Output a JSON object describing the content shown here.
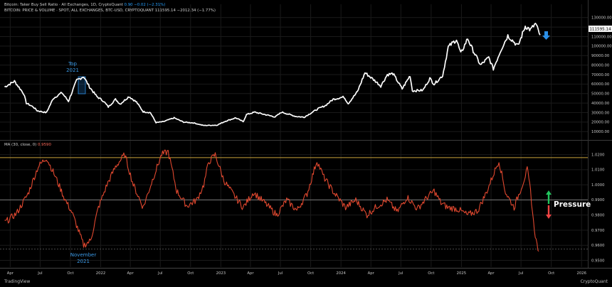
{
  "header": {
    "line1_title": "Bitcoin: Taker Buy Sell Ratio · All Exchanges, 1D, CryptoQuant",
    "line1_values": "0.90  −0.02 (−2.31%)",
    "line2_title": "BITCOIN: PRICE & VOLUME · SPOT, ALL EXCHANGES, BTC-USD, CRYPTOQUANT",
    "line2_values": "111595.14  −2012.34 (−1.77%)",
    "ma_label": "MA (30, close, 0)",
    "ma_value": "0.9590"
  },
  "watermarks": {
    "left": "TradingView",
    "right": "CryptoQuant"
  },
  "colors": {
    "price_line": "#ffffff",
    "ma_line": "#e0482f",
    "band_line": "#c8a23a",
    "accent_blue": "#2b8fe8",
    "arrow_green": "#22c55e",
    "arrow_red": "#ef4444",
    "grid": "#1a1a1a"
  },
  "chart_data": [
    {
      "type": "line",
      "panel": "price",
      "series_name": "BITCOIN: PRICE & VOLUME",
      "x_ticks": [
        "Apr",
        "Jul",
        "Oct",
        "2022",
        "Apr",
        "Jul",
        "Oct",
        "2023",
        "Apr",
        "Jul",
        "Oct",
        "2024",
        "Apr",
        "Jul",
        "Oct",
        "2025",
        "Apr",
        "Jul",
        "Oct",
        "2026"
      ],
      "y_ticks": [
        "130000.00",
        "120000.00",
        "110000.00",
        "100000.00",
        "90000.00",
        "80000.00",
        "70000.00",
        "60000.00",
        "50000.00",
        "40000.00",
        "30000.00",
        "20000.00",
        "10000.00"
      ],
      "ylim": [
        5000,
        135000
      ],
      "current_value_label": "111595.14",
      "points": [
        [
          "2021-03-15",
          57000
        ],
        [
          "2021-04-14",
          63000
        ],
        [
          "2021-05-12",
          50000
        ],
        [
          "2021-05-20",
          40000
        ],
        [
          "2021-06-10",
          36000
        ],
        [
          "2021-06-22",
          32000
        ],
        [
          "2021-07-20",
          30000
        ],
        [
          "2021-08-10",
          45000
        ],
        [
          "2021-09-05",
          51000
        ],
        [
          "2021-09-25",
          42000
        ],
        [
          "2021-10-20",
          64000
        ],
        [
          "2021-11-10",
          68000
        ],
        [
          "2021-11-28",
          57000
        ],
        [
          "2021-12-20",
          47000
        ],
        [
          "2022-01-10",
          42000
        ],
        [
          "2022-01-24",
          36000
        ],
        [
          "2022-02-15",
          44000
        ],
        [
          "2022-03-01",
          39000
        ],
        [
          "2022-03-28",
          47000
        ],
        [
          "2022-04-20",
          41000
        ],
        [
          "2022-05-10",
          31000
        ],
        [
          "2022-06-01",
          30000
        ],
        [
          "2022-06-18",
          19500
        ],
        [
          "2022-07-10",
          20500
        ],
        [
          "2022-08-12",
          24500
        ],
        [
          "2022-09-10",
          20000
        ],
        [
          "2022-10-10",
          19200
        ],
        [
          "2022-11-09",
          16500
        ],
        [
          "2022-12-20",
          16800
        ],
        [
          "2023-01-15",
          21000
        ],
        [
          "2023-02-15",
          24500
        ],
        [
          "2023-03-10",
          20500
        ],
        [
          "2023-03-20",
          28000
        ],
        [
          "2023-04-14",
          30500
        ],
        [
          "2023-06-15",
          25500
        ],
        [
          "2023-07-05",
          30500
        ],
        [
          "2023-08-17",
          26000
        ],
        [
          "2023-09-11",
          25200
        ],
        [
          "2023-10-23",
          34000
        ],
        [
          "2023-11-15",
          37500
        ],
        [
          "2023-12-08",
          44000
        ],
        [
          "2024-01-10",
          46500
        ],
        [
          "2024-01-23",
          39500
        ],
        [
          "2024-02-20",
          52000
        ],
        [
          "2024-03-14",
          72000
        ],
        [
          "2024-04-15",
          63000
        ],
        [
          "2024-05-01",
          58000
        ],
        [
          "2024-05-21",
          70000
        ],
        [
          "2024-06-07",
          71000
        ],
        [
          "2024-07-05",
          55000
        ],
        [
          "2024-07-29",
          69000
        ],
        [
          "2024-08-05",
          53000
        ],
        [
          "2024-09-06",
          53500
        ],
        [
          "2024-09-27",
          66000
        ],
        [
          "2024-10-10",
          60000
        ],
        [
          "2024-11-05",
          69000
        ],
        [
          "2024-11-22",
          99000
        ],
        [
          "2024-12-17",
          107000
        ],
        [
          "2024-12-30",
          92000
        ],
        [
          "2025-01-20",
          108000
        ],
        [
          "2025-02-03",
          97000
        ],
        [
          "2025-02-28",
          80000
        ],
        [
          "2025-03-25",
          88000
        ],
        [
          "2025-04-08",
          76000
        ],
        [
          "2025-05-01",
          96000
        ],
        [
          "2025-05-22",
          111000
        ],
        [
          "2025-06-22",
          100000
        ],
        [
          "2025-07-14",
          121000
        ],
        [
          "2025-07-30",
          117000
        ],
        [
          "2025-08-14",
          123500
        ],
        [
          "2025-08-28",
          111595
        ]
      ]
    },
    {
      "type": "line",
      "panel": "indicator",
      "series_name": "MA (30, close, 0)",
      "y_ticks": [
        "1.0200",
        "1.0100",
        "1.0000",
        "0.9900",
        "0.9800",
        "0.9700",
        "0.9600",
        "0.9500"
      ],
      "ylim": [
        0.9465,
        1.0245
      ],
      "reference_lines": [
        {
          "value": 1.018,
          "color": "#c8a23a",
          "style": "solid"
        },
        {
          "value": 0.99,
          "color": "#7a7a7a",
          "style": "solid"
        },
        {
          "value": 0.9575,
          "color": "#4a4a4a",
          "style": "dashed"
        }
      ],
      "points": [
        [
          "2021-03-15",
          0.975
        ],
        [
          "2021-04-20",
          0.981
        ],
        [
          "2021-05-25",
          0.994
        ],
        [
          "2021-06-25",
          1.012
        ],
        [
          "2021-07-20",
          1.018
        ],
        [
          "2021-08-15",
          1.006
        ],
        [
          "2021-09-15",
          0.99
        ],
        [
          "2021-10-05",
          0.982
        ],
        [
          "2021-10-25",
          0.97
        ],
        [
          "2021-11-10",
          0.96
        ],
        [
          "2021-12-01",
          0.963
        ],
        [
          "2021-12-25",
          0.985
        ],
        [
          "2022-01-20",
          1.0
        ],
        [
          "2022-02-15",
          1.012
        ],
        [
          "2022-03-15",
          1.02
        ],
        [
          "2022-04-10",
          1.0
        ],
        [
          "2022-05-10",
          0.985
        ],
        [
          "2022-06-10",
          1.005
        ],
        [
          "2022-07-05",
          1.02
        ],
        [
          "2022-07-25",
          1.022
        ],
        [
          "2022-08-20",
          0.996
        ],
        [
          "2022-09-20",
          0.986
        ],
        [
          "2022-10-20",
          0.99
        ],
        [
          "2022-11-10",
          1.0
        ],
        [
          "2022-11-25",
          1.015
        ],
        [
          "2022-12-15",
          1.02
        ],
        [
          "2023-01-10",
          1.003
        ],
        [
          "2023-02-10",
          0.993
        ],
        [
          "2023-03-10",
          0.985
        ],
        [
          "2023-04-10",
          0.995
        ],
        [
          "2023-05-15",
          0.988
        ],
        [
          "2023-06-20",
          0.98
        ],
        [
          "2023-07-20",
          0.99
        ],
        [
          "2023-08-20",
          0.983
        ],
        [
          "2023-09-20",
          0.994
        ],
        [
          "2023-10-20",
          1.016
        ],
        [
          "2023-11-10",
          1.005
        ],
        [
          "2023-12-10",
          0.995
        ],
        [
          "2024-01-15",
          0.985
        ],
        [
          "2024-02-15",
          0.99
        ],
        [
          "2024-03-20",
          0.98
        ],
        [
          "2024-04-20",
          0.986
        ],
        [
          "2024-05-20",
          0.99
        ],
        [
          "2024-06-20",
          0.982
        ],
        [
          "2024-07-20",
          0.992
        ],
        [
          "2024-08-20",
          0.984
        ],
        [
          "2024-09-20",
          0.992
        ],
        [
          "2024-10-10",
          0.996
        ],
        [
          "2024-10-31",
          0.988
        ],
        [
          "2024-11-20",
          0.985
        ],
        [
          "2024-12-20",
          0.984
        ],
        [
          "2025-01-20",
          0.98
        ],
        [
          "2025-02-20",
          0.983
        ],
        [
          "2025-03-20",
          0.996
        ],
        [
          "2025-04-10",
          1.008
        ],
        [
          "2025-04-25",
          1.016
        ],
        [
          "2025-05-15",
          0.995
        ],
        [
          "2025-06-10",
          0.985
        ],
        [
          "2025-07-05",
          1.0
        ],
        [
          "2025-07-20",
          1.01
        ],
        [
          "2025-07-30",
          0.996
        ],
        [
          "2025-08-08",
          0.975
        ],
        [
          "2025-08-16",
          0.963
        ],
        [
          "2025-08-24",
          0.956
        ]
      ]
    }
  ],
  "annotations": {
    "top_label_1": "Top",
    "top_label_2": "2021",
    "bottom_label_1": "November",
    "bottom_label_2": "2021",
    "pressure": "Pressure"
  }
}
